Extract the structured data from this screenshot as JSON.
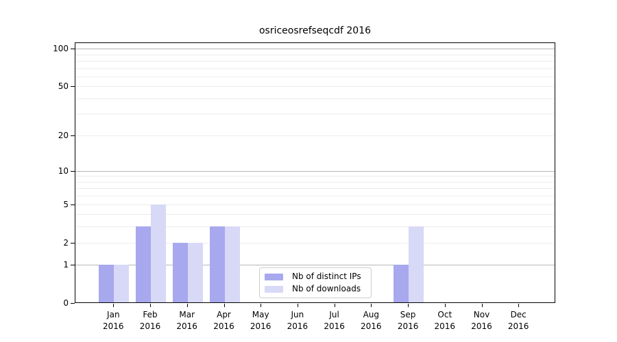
{
  "chart_data": {
    "type": "bar",
    "title": "osriceosrefseqcdf 2016",
    "categories": [
      "Jan",
      "Feb",
      "Mar",
      "Apr",
      "May",
      "Jun",
      "Jul",
      "Aug",
      "Sep",
      "Oct",
      "Nov",
      "Dec"
    ],
    "category_year": "2016",
    "series": [
      {
        "name": "Nb of distinct IPs",
        "color": "#a8a8ee",
        "values": [
          1,
          3,
          2,
          3,
          0,
          0,
          0,
          0,
          1,
          0,
          0,
          0
        ]
      },
      {
        "name": "Nb of downloads",
        "color": "#d8d8f7",
        "values": [
          1,
          5,
          2,
          3,
          0,
          0,
          0,
          0,
          3,
          0,
          0,
          0
        ]
      }
    ],
    "xlabel": "",
    "ylabel": "",
    "yscale": "log10(1+x)",
    "ylim": [
      0,
      112
    ],
    "yticks": [
      0,
      1,
      2,
      5,
      10,
      20,
      50,
      100
    ],
    "grid": true,
    "grid_major_values": [
      1,
      10,
      100
    ],
    "grid_minor_values": [
      2,
      3,
      4,
      5,
      6,
      7,
      8,
      9,
      20,
      30,
      40,
      50,
      60,
      70,
      80,
      90
    ],
    "legend_position": "lower center"
  },
  "colors": {
    "background": "#ffffff",
    "axis": "#000000",
    "grid_major": "#b5b5b5",
    "grid_minor": "#ececec",
    "legend_border": "#cccccc",
    "bar_distinct_ips": "#a8a8ee",
    "bar_downloads": "#d8d8f7"
  }
}
